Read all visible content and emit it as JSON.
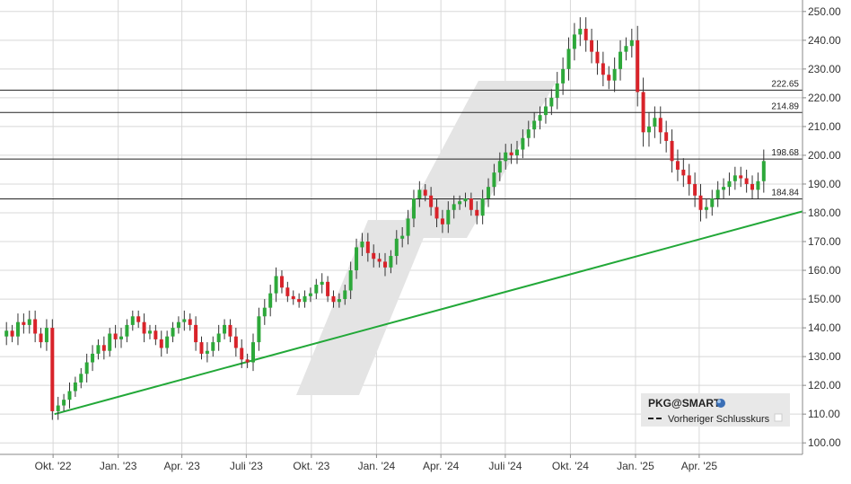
{
  "chart_data": {
    "type": "candlestick",
    "symbol": "PKG@SMART",
    "legend": {
      "symbol_label": "PKG@SMART",
      "prev_close_label": "Vorheriger Schlusskurs"
    },
    "y_axis": {
      "side": "right",
      "range": [
        96,
        254
      ],
      "ticks": [
        100,
        110,
        120,
        130,
        140,
        150,
        160,
        170,
        180,
        190,
        200,
        210,
        220,
        230,
        240,
        250
      ],
      "tick_labels": [
        "100.00",
        "110.00",
        "120.00",
        "130.00",
        "140.00",
        "150.00",
        "160.00",
        "170.00",
        "180.00",
        "190.00",
        "200.00",
        "210.00",
        "220.00",
        "230.00",
        "240.00",
        "250.00"
      ]
    },
    "x_axis": {
      "start": "2022-07-18",
      "end": "2025-08-25",
      "ticks": [
        {
          "date": "2022-10-01",
          "label": "Okt. '22"
        },
        {
          "date": "2023-01-01",
          "label": "Jan. '23"
        },
        {
          "date": "2023-04-01",
          "label": "Apr. '23"
        },
        {
          "date": "2023-07-01",
          "label": "Juli '23"
        },
        {
          "date": "2023-10-01",
          "label": "Okt. '23"
        },
        {
          "date": "2024-01-01",
          "label": "Jan. '24"
        },
        {
          "date": "2024-04-01",
          "label": "Apr. '24"
        },
        {
          "date": "2024-07-01",
          "label": "Juli '24"
        },
        {
          "date": "2024-10-01",
          "label": "Okt. '24"
        },
        {
          "date": "2025-01-01",
          "label": "Jan. '25"
        },
        {
          "date": "2025-04-01",
          "label": "Apr. '25"
        }
      ]
    },
    "levels": [
      {
        "value": 222.65,
        "label": "222.65"
      },
      {
        "value": 214.89,
        "label": "214.89"
      },
      {
        "value": 198.68,
        "label": "198.68"
      },
      {
        "value": 184.84,
        "label": "184.84"
      }
    ],
    "trendline": {
      "from": {
        "date": "2022-10-03",
        "value": 110.0
      },
      "to": {
        "date": "2025-08-25",
        "value": 180.5
      },
      "color": "#22a838"
    },
    "colors": {
      "up": "#2da83a",
      "down": "#d8232a",
      "grid": "#d8d8d8",
      "level": "#222222",
      "watermark": "#e4e4e4"
    },
    "grid": true,
    "close_series": [
      139,
      137,
      142,
      141,
      143,
      138,
      135,
      140,
      111,
      113,
      115,
      118,
      121,
      124,
      128,
      131,
      134,
      132,
      138,
      136,
      137,
      141,
      144,
      142,
      138,
      139,
      136,
      133,
      137,
      140,
      142,
      143,
      141,
      135,
      131,
      132,
      135,
      138,
      141,
      137,
      133,
      129,
      128,
      135,
      144,
      147,
      152,
      158,
      154,
      151,
      150,
      149,
      151,
      152,
      155,
      156,
      151,
      149,
      150,
      153,
      160,
      168,
      170,
      166,
      164,
      163,
      161,
      165,
      171,
      172,
      178,
      185,
      188,
      186,
      182,
      178,
      176,
      181,
      183,
      184,
      185,
      181,
      179,
      185,
      189,
      194,
      198,
      201,
      200,
      202,
      206,
      209,
      212,
      214,
      217,
      220,
      225,
      230,
      237,
      242,
      244,
      240,
      236,
      232,
      228,
      226,
      230,
      236,
      238,
      240,
      222,
      208,
      210,
      213,
      208,
      205,
      198,
      195,
      193,
      190,
      186,
      181,
      182,
      185,
      188,
      189,
      191,
      193,
      192,
      190,
      188,
      191,
      198
    ],
    "volatility": [
      3,
      2,
      3,
      3,
      3,
      3,
      2,
      3,
      3,
      3,
      2,
      3,
      2,
      2,
      3,
      3,
      2,
      3,
      2,
      3,
      3,
      2,
      2,
      2,
      3,
      2,
      2,
      3,
      2,
      2,
      2,
      3,
      2,
      3,
      2,
      3,
      2,
      3,
      2,
      2,
      3,
      3,
      2,
      3,
      3,
      3,
      3,
      3,
      2,
      2,
      2,
      2,
      2,
      2,
      2,
      3,
      2,
      2,
      2,
      2,
      3,
      3,
      3,
      3,
      3,
      2,
      3,
      2,
      3,
      3,
      3,
      3,
      3,
      2,
      3,
      3,
      3,
      3,
      3,
      2,
      2,
      2,
      3,
      3,
      3,
      3,
      3,
      3,
      3,
      3,
      3,
      3,
      3,
      3,
      3,
      3,
      4,
      4,
      4,
      4,
      4,
      4,
      4,
      4,
      4,
      3,
      4,
      4,
      3,
      4,
      5,
      5,
      5,
      4,
      4,
      4,
      4,
      4,
      4,
      4,
      4,
      4,
      3,
      3,
      3,
      3,
      3,
      3,
      3,
      3,
      3,
      3,
      4
    ]
  }
}
